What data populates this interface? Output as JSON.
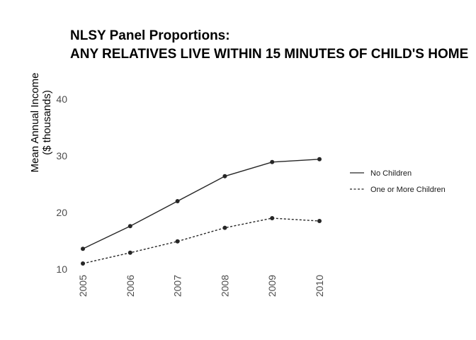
{
  "chart_data": {
    "type": "line",
    "title": "NLSY Panel Proportions:",
    "subtitle": "ANY RELATIVES LIVE WITHIN 15 MINUTES OF CHILD'S HOME",
    "xlabel": "",
    "ylabel": "Mean Annual Income",
    "ylabel_line2": "($ thousands)",
    "x": [
      "2005",
      "2006",
      "2007",
      "2008",
      "2009",
      "2010"
    ],
    "yticks": [
      10,
      20,
      30,
      40
    ],
    "ylim": [
      10,
      44
    ],
    "grid": false,
    "legend_position": "right",
    "series": [
      {
        "name": "No Children",
        "linestyle": "solid",
        "color": "#262626",
        "values": [
          13.6,
          17.6,
          22.0,
          26.4,
          28.9,
          29.4
        ]
      },
      {
        "name": "One or More Children",
        "linestyle": "dashed",
        "color": "#262626",
        "values": [
          11.0,
          12.9,
          14.9,
          17.3,
          19.0,
          18.5
        ]
      }
    ]
  }
}
